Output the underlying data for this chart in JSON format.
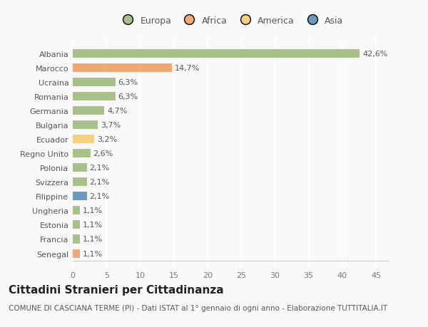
{
  "countries": [
    "Albania",
    "Marocco",
    "Ucraina",
    "Romania",
    "Germania",
    "Bulgaria",
    "Ecuador",
    "Regno Unito",
    "Polonia",
    "Svizzera",
    "Filippine",
    "Ungheria",
    "Estonia",
    "Francia",
    "Senegal"
  ],
  "values": [
    42.6,
    14.7,
    6.3,
    6.3,
    4.7,
    3.7,
    3.2,
    2.6,
    2.1,
    2.1,
    2.1,
    1.1,
    1.1,
    1.1,
    1.1
  ],
  "labels": [
    "42,6%",
    "14,7%",
    "6,3%",
    "6,3%",
    "4,7%",
    "3,7%",
    "3,2%",
    "2,6%",
    "2,1%",
    "2,1%",
    "2,1%",
    "1,1%",
    "1,1%",
    "1,1%",
    "1,1%"
  ],
  "colors": [
    "#a8c08a",
    "#f0a875",
    "#a8c08a",
    "#a8c08a",
    "#a8c08a",
    "#a8c08a",
    "#f5d080",
    "#a8c08a",
    "#a8c08a",
    "#a8c08a",
    "#6b9abf",
    "#a8c08a",
    "#a8c08a",
    "#a8c08a",
    "#f0a875"
  ],
  "legend_labels": [
    "Europa",
    "Africa",
    "America",
    "Asia"
  ],
  "legend_colors": [
    "#a8c08a",
    "#f0a875",
    "#f5d080",
    "#6b9abf"
  ],
  "title": "Cittadini Stranieri per Cittadinanza",
  "subtitle": "COMUNE DI CASCIANA TERME (PI) - Dati ISTAT al 1° gennaio di ogni anno - Elaborazione TUTTITALIA.IT",
  "xlim": [
    0,
    47
  ],
  "xticks": [
    0,
    5,
    10,
    15,
    20,
    25,
    30,
    35,
    40,
    45
  ],
  "background_color": "#f9f9f9",
  "plot_bg_color": "#f9f9f9",
  "grid_color": "#ffffff",
  "bar_height": 0.6,
  "label_fontsize": 8,
  "tick_fontsize": 8,
  "title_fontsize": 11,
  "subtitle_fontsize": 7.5
}
